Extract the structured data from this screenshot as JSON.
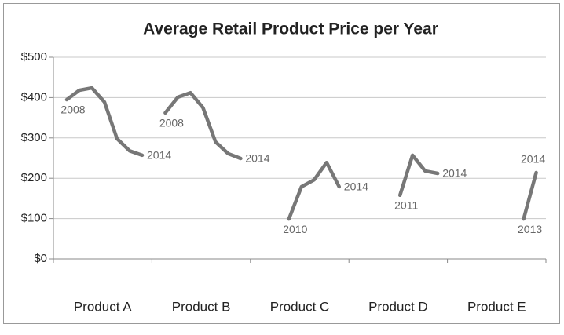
{
  "chart_data": {
    "type": "line",
    "title": "Average Retail Product Price per Year",
    "categories": [
      "Product A",
      "Product B",
      "Product C",
      "Product D",
      "Product E"
    ],
    "series": [
      {
        "color": "#777777",
        "x": [
          2008,
          2009,
          2010,
          2011,
          2012,
          2013,
          2014
        ],
        "values": [
          395,
          418,
          424,
          389,
          298,
          268,
          257
        ]
      },
      {
        "color": "#777777",
        "x": [
          2008,
          2009,
          2010,
          2011,
          2012,
          2013,
          2014
        ],
        "values": [
          362,
          401,
          412,
          375,
          290,
          261,
          249
        ]
      },
      {
        "color": "#777777",
        "x": [
          2010,
          2011,
          2012,
          2013,
          2014
        ],
        "values": [
          99,
          179,
          196,
          239,
          179
        ]
      },
      {
        "color": "#777777",
        "x": [
          2011,
          2012,
          2013,
          2014
        ],
        "values": [
          158,
          257,
          218,
          212
        ]
      },
      {
        "color": "#777777",
        "x": [
          2013,
          2014
        ],
        "values": [
          99,
          214
        ]
      }
    ],
    "xlim": [
      2008,
      2014
    ],
    "ylim": [
      0,
      500
    ],
    "yticks": [
      {
        "value": 0,
        "label": "$0"
      },
      {
        "value": 100,
        "label": "$100"
      },
      {
        "value": 200,
        "label": "$200"
      },
      {
        "value": 300,
        "label": "$300"
      },
      {
        "value": 400,
        "label": "$400"
      },
      {
        "value": 500,
        "label": "$500"
      }
    ],
    "grid": true
  }
}
